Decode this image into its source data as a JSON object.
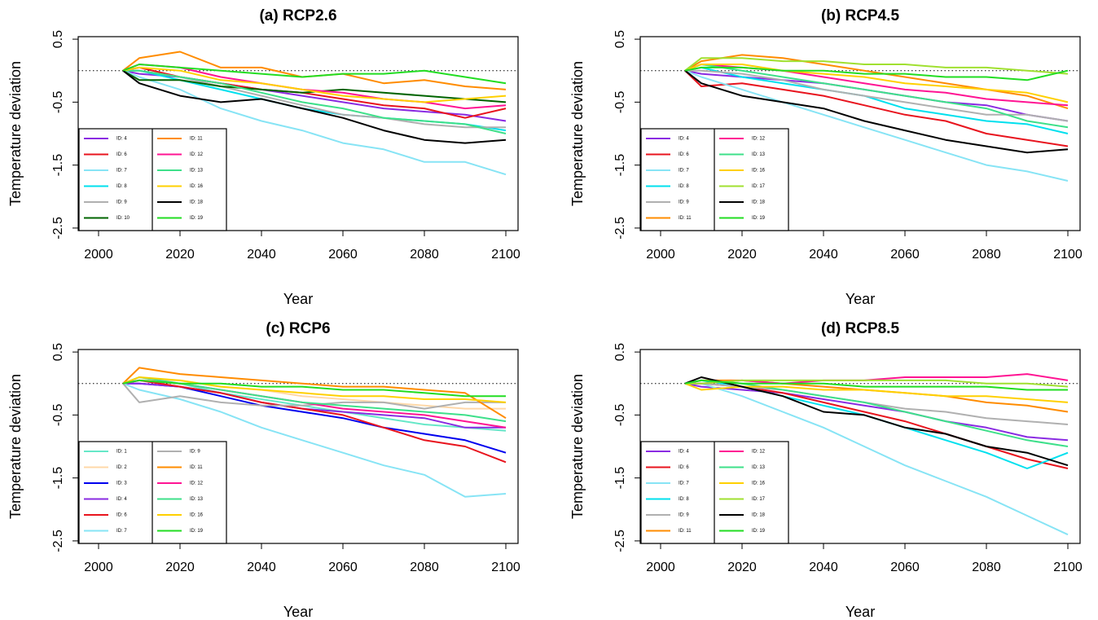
{
  "chart_data": [
    {
      "type": "line",
      "title": "(a) RCP2.6",
      "x_label": "Year",
      "y_label": "Temperature deviation",
      "x": [
        2006,
        2010,
        2020,
        2030,
        2040,
        2050,
        2060,
        2070,
        2080,
        2090,
        2100
      ],
      "xlim": [
        1995,
        2103
      ],
      "xticks": [
        2000,
        2020,
        2040,
        2060,
        2080,
        2100
      ],
      "ylim": [
        -2.54,
        0.54
      ],
      "yticks": [
        0.5,
        -0.5,
        -1.5,
        -2.5
      ],
      "reference_line": 0,
      "legend": "bottomleft",
      "series": [
        {
          "name": "ID: 4",
          "color": "#8a2be2",
          "values": [
            0,
            -0.05,
            -0.1,
            -0.2,
            -0.3,
            -0.4,
            -0.5,
            -0.6,
            -0.65,
            -0.7,
            -0.8
          ]
        },
        {
          "name": "ID: 6",
          "color": "#e8141e",
          "values": [
            0,
            0.05,
            -0.1,
            -0.2,
            -0.3,
            -0.35,
            -0.45,
            -0.55,
            -0.6,
            -0.75,
            -0.6
          ]
        },
        {
          "name": "ID: 7",
          "color": "#87e4f5",
          "values": [
            0,
            -0.1,
            -0.3,
            -0.6,
            -0.8,
            -0.95,
            -1.15,
            -1.25,
            -1.45,
            -1.45,
            -1.65
          ]
        },
        {
          "name": "ID: 8",
          "color": "#00e0ee",
          "values": [
            0,
            0,
            -0.15,
            -0.3,
            -0.45,
            -0.6,
            -0.7,
            -0.75,
            -0.8,
            -0.85,
            -0.95
          ]
        },
        {
          "name": "ID: 9",
          "color": "#b0b0b0",
          "values": [
            0,
            0,
            -0.1,
            -0.25,
            -0.4,
            -0.55,
            -0.7,
            -0.75,
            -0.85,
            -0.9,
            -0.9
          ]
        },
        {
          "name": "ID: 10",
          "color": "#006400",
          "values": [
            0,
            -0.15,
            -0.15,
            -0.25,
            -0.3,
            -0.35,
            -0.3,
            -0.35,
            -0.4,
            -0.45,
            -0.5
          ]
        },
        {
          "name": "ID: 11",
          "color": "#ff8c00",
          "values": [
            0,
            0.2,
            0.3,
            0.05,
            0.05,
            -0.1,
            -0.05,
            -0.2,
            -0.15,
            -0.25,
            -0.3
          ]
        },
        {
          "name": "ID: 12",
          "color": "#ff1493",
          "values": [
            0,
            0.1,
            0.05,
            -0.1,
            -0.2,
            -0.3,
            -0.35,
            -0.45,
            -0.5,
            -0.6,
            -0.55
          ]
        },
        {
          "name": "ID: 13",
          "color": "#3ee08a",
          "values": [
            0,
            0,
            -0.1,
            -0.2,
            -0.35,
            -0.5,
            -0.6,
            -0.75,
            -0.8,
            -0.85,
            -1.0
          ]
        },
        {
          "name": "ID: 16",
          "color": "#ffd000",
          "values": [
            0,
            0.05,
            0,
            -0.15,
            -0.2,
            -0.3,
            -0.4,
            -0.45,
            -0.5,
            -0.45,
            -0.4
          ]
        },
        {
          "name": "ID: 18",
          "color": "#000000",
          "values": [
            0,
            -0.2,
            -0.4,
            -0.5,
            -0.45,
            -0.6,
            -0.75,
            -0.95,
            -1.1,
            -1.15,
            -1.1
          ]
        },
        {
          "name": "ID: 19",
          "color": "#22dd22",
          "values": [
            0,
            0.1,
            0.05,
            0,
            -0.05,
            -0.1,
            -0.05,
            -0.05,
            0,
            -0.1,
            -0.2
          ]
        }
      ]
    },
    {
      "type": "line",
      "title": "(b) RCP4.5",
      "x_label": "Year",
      "y_label": "Temperature deviation",
      "x": [
        2006,
        2010,
        2020,
        2030,
        2040,
        2050,
        2060,
        2070,
        2080,
        2090,
        2100
      ],
      "xlim": [
        1995,
        2103
      ],
      "xticks": [
        2000,
        2020,
        2040,
        2060,
        2080,
        2100
      ],
      "ylim": [
        -2.54,
        0.54
      ],
      "yticks": [
        0.5,
        -0.5,
        -1.5,
        -2.5
      ],
      "reference_line": 0,
      "legend": "bottomleft",
      "series": [
        {
          "name": "ID: 4",
          "color": "#8a2be2",
          "values": [
            0,
            -0.05,
            -0.1,
            -0.15,
            -0.2,
            -0.3,
            -0.4,
            -0.5,
            -0.55,
            -0.7,
            -0.8
          ]
        },
        {
          "name": "ID: 6",
          "color": "#e8141e",
          "values": [
            0,
            -0.25,
            -0.2,
            -0.3,
            -0.4,
            -0.55,
            -0.7,
            -0.8,
            -1.0,
            -1.1,
            -1.2
          ]
        },
        {
          "name": "ID: 7",
          "color": "#87e4f5",
          "values": [
            0,
            -0.1,
            -0.3,
            -0.5,
            -0.7,
            -0.9,
            -1.1,
            -1.3,
            -1.5,
            -1.6,
            -1.75
          ]
        },
        {
          "name": "ID: 8",
          "color": "#00e0ee",
          "values": [
            0,
            0.05,
            -0.1,
            -0.2,
            -0.3,
            -0.4,
            -0.6,
            -0.7,
            -0.8,
            -0.85,
            -1.0
          ]
        },
        {
          "name": "ID: 9",
          "color": "#b0b0b0",
          "values": [
            0,
            0,
            -0.05,
            -0.15,
            -0.3,
            -0.4,
            -0.5,
            -0.6,
            -0.7,
            -0.7,
            -0.8
          ]
        },
        {
          "name": "ID: 11",
          "color": "#ff8c00",
          "values": [
            0,
            0.15,
            0.25,
            0.2,
            0.1,
            0,
            -0.1,
            -0.2,
            -0.3,
            -0.4,
            -0.6
          ]
        },
        {
          "name": "ID: 12",
          "color": "#ff1493",
          "values": [
            0,
            0.1,
            0.05,
            0,
            -0.1,
            -0.2,
            -0.3,
            -0.35,
            -0.45,
            -0.5,
            -0.55
          ]
        },
        {
          "name": "ID: 13",
          "color": "#3ee08a",
          "values": [
            0,
            0.1,
            0,
            -0.1,
            -0.2,
            -0.3,
            -0.4,
            -0.5,
            -0.6,
            -0.8,
            -0.9
          ]
        },
        {
          "name": "ID: 16",
          "color": "#ffd000",
          "values": [
            0,
            0.1,
            0.1,
            0,
            -0.05,
            -0.1,
            -0.2,
            -0.25,
            -0.3,
            -0.35,
            -0.5
          ]
        },
        {
          "name": "ID: 17",
          "color": "#a0e030",
          "values": [
            0,
            0.2,
            0.2,
            0.15,
            0.15,
            0.1,
            0.1,
            0.05,
            0.05,
            0,
            -0.05
          ]
        },
        {
          "name": "ID: 18",
          "color": "#000000",
          "values": [
            0,
            -0.2,
            -0.4,
            -0.5,
            -0.6,
            -0.8,
            -0.95,
            -1.1,
            -1.2,
            -1.3,
            -1.25
          ]
        },
        {
          "name": "ID: 19",
          "color": "#22dd22",
          "values": [
            0,
            0.05,
            0.05,
            0,
            0,
            -0.05,
            -0.05,
            -0.1,
            -0.1,
            -0.15,
            0
          ]
        }
      ]
    },
    {
      "type": "line",
      "title": "(c) RCP6",
      "x_label": "Year",
      "y_label": "Temperature deviation",
      "x": [
        2006,
        2010,
        2020,
        2030,
        2040,
        2050,
        2060,
        2070,
        2080,
        2090,
        2100
      ],
      "xlim": [
        1995,
        2103
      ],
      "xticks": [
        2000,
        2020,
        2040,
        2060,
        2080,
        2100
      ],
      "ylim": [
        -2.54,
        0.54
      ],
      "yticks": [
        0.5,
        -0.5,
        -1.5,
        -2.5
      ],
      "reference_line": 0,
      "legend": "bottomleft",
      "series": [
        {
          "name": "ID: 1",
          "color": "#66e8c8",
          "values": [
            0,
            0.1,
            0,
            -0.15,
            -0.25,
            -0.35,
            -0.45,
            -0.55,
            -0.65,
            -0.7,
            -0.75
          ]
        },
        {
          "name": "ID: 2",
          "color": "#ffd8a8",
          "values": [
            0,
            0.05,
            0.05,
            -0.05,
            -0.1,
            -0.2,
            -0.25,
            -0.3,
            -0.35,
            -0.4,
            -0.4
          ]
        },
        {
          "name": "ID: 3",
          "color": "#0000ee",
          "values": [
            0,
            0,
            -0.05,
            -0.2,
            -0.35,
            -0.45,
            -0.55,
            -0.7,
            -0.8,
            -0.9,
            -1.1
          ]
        },
        {
          "name": "ID: 4",
          "color": "#8a2be2",
          "values": [
            0,
            0,
            -0.05,
            -0.15,
            -0.3,
            -0.4,
            -0.45,
            -0.5,
            -0.55,
            -0.7,
            -0.7
          ]
        },
        {
          "name": "ID: 6",
          "color": "#e8141e",
          "values": [
            0,
            0.05,
            -0.05,
            -0.15,
            -0.3,
            -0.4,
            -0.5,
            -0.7,
            -0.9,
            -1.0,
            -1.25
          ]
        },
        {
          "name": "ID: 7",
          "color": "#87e4f5",
          "values": [
            0,
            -0.1,
            -0.25,
            -0.45,
            -0.7,
            -0.9,
            -1.1,
            -1.3,
            -1.45,
            -1.8,
            -1.75
          ]
        },
        {
          "name": "ID: 9",
          "color": "#b0b0b0",
          "values": [
            0,
            -0.3,
            -0.2,
            -0.3,
            -0.35,
            -0.35,
            -0.3,
            -0.3,
            -0.4,
            -0.3,
            -0.3
          ]
        },
        {
          "name": "ID: 11",
          "color": "#ff8c00",
          "values": [
            0,
            0.25,
            0.15,
            0.1,
            0.05,
            0,
            -0.05,
            -0.05,
            -0.1,
            -0.15,
            -0.55
          ]
        },
        {
          "name": "ID: 12",
          "color": "#ff1493",
          "values": [
            0,
            0.05,
            0,
            -0.1,
            -0.2,
            -0.3,
            -0.4,
            -0.45,
            -0.5,
            -0.6,
            -0.7
          ]
        },
        {
          "name": "ID: 13",
          "color": "#3ee08a",
          "values": [
            0,
            0.1,
            0,
            -0.1,
            -0.2,
            -0.3,
            -0.35,
            -0.4,
            -0.45,
            -0.5,
            -0.6
          ]
        },
        {
          "name": "ID: 16",
          "color": "#ffd000",
          "values": [
            0,
            0.1,
            0.05,
            -0.05,
            -0.1,
            -0.15,
            -0.2,
            -0.2,
            -0.25,
            -0.25,
            -0.3
          ]
        },
        {
          "name": "ID: 19",
          "color": "#22dd22",
          "values": [
            0,
            0.05,
            0,
            0,
            -0.05,
            -0.05,
            -0.1,
            -0.1,
            -0.15,
            -0.2,
            -0.2
          ]
        }
      ]
    },
    {
      "type": "line",
      "title": "(d) RCP8.5",
      "x_label": "Year",
      "y_label": "Temperature deviation",
      "x": [
        2006,
        2010,
        2020,
        2030,
        2040,
        2050,
        2060,
        2070,
        2080,
        2090,
        2100
      ],
      "xlim": [
        1995,
        2103
      ],
      "xticks": [
        2000,
        2020,
        2040,
        2060,
        2080,
        2100
      ],
      "ylim": [
        -2.54,
        0.54
      ],
      "yticks": [
        0.5,
        -0.5,
        -1.5,
        -2.5
      ],
      "reference_line": 0,
      "legend": "bottomleft",
      "series": [
        {
          "name": "ID: 4",
          "color": "#8a2be2",
          "values": [
            0,
            -0.05,
            -0.1,
            -0.15,
            -0.25,
            -0.35,
            -0.45,
            -0.6,
            -0.7,
            -0.85,
            -0.9
          ]
        },
        {
          "name": "ID: 6",
          "color": "#e8141e",
          "values": [
            0,
            0,
            -0.05,
            -0.15,
            -0.3,
            -0.45,
            -0.6,
            -0.8,
            -1.0,
            -1.2,
            -1.35
          ]
        },
        {
          "name": "ID: 7",
          "color": "#87e4f5",
          "values": [
            0,
            0,
            -0.2,
            -0.45,
            -0.7,
            -1.0,
            -1.3,
            -1.55,
            -1.8,
            -2.1,
            -2.4
          ]
        },
        {
          "name": "ID: 8",
          "color": "#00e0ee",
          "values": [
            0,
            0.05,
            -0.05,
            -0.2,
            -0.35,
            -0.5,
            -0.7,
            -0.9,
            -1.1,
            -1.35,
            -1.1
          ]
        },
        {
          "name": "ID: 9",
          "color": "#b0b0b0",
          "values": [
            0,
            0,
            -0.05,
            -0.1,
            -0.2,
            -0.3,
            -0.4,
            -0.45,
            -0.55,
            -0.6,
            -0.65
          ]
        },
        {
          "name": "ID: 11",
          "color": "#ff8c00",
          "values": [
            0,
            0.05,
            0.05,
            0,
            -0.05,
            -0.1,
            -0.15,
            -0.2,
            -0.3,
            -0.35,
            -0.45
          ]
        },
        {
          "name": "ID: 12",
          "color": "#ff1493",
          "values": [
            0,
            0,
            0.05,
            0,
            0.05,
            0.05,
            0.1,
            0.1,
            0.1,
            0.15,
            0.05
          ]
        },
        {
          "name": "ID: 13",
          "color": "#3ee08a",
          "values": [
            0,
            0.05,
            0,
            -0.1,
            -0.2,
            -0.3,
            -0.45,
            -0.6,
            -0.75,
            -0.9,
            -1.0
          ]
        },
        {
          "name": "ID: 16",
          "color": "#ffd000",
          "values": [
            0,
            -0.1,
            -0.05,
            -0.05,
            -0.1,
            -0.1,
            -0.15,
            -0.2,
            -0.2,
            -0.25,
            -0.3
          ]
        },
        {
          "name": "ID: 17",
          "color": "#a0e030",
          "values": [
            0,
            0,
            0.05,
            0.05,
            0.05,
            0.05,
            0.05,
            0.05,
            0,
            0,
            -0.05
          ]
        },
        {
          "name": "ID: 18",
          "color": "#000000",
          "values": [
            0,
            0.1,
            -0.05,
            -0.2,
            -0.45,
            -0.5,
            -0.7,
            -0.8,
            -1.0,
            -1.1,
            -1.3
          ]
        },
        {
          "name": "ID: 19",
          "color": "#22dd22",
          "values": [
            0,
            0.05,
            0,
            0,
            0,
            -0.05,
            -0.05,
            -0.05,
            -0.05,
            -0.1,
            -0.1
          ]
        }
      ]
    }
  ]
}
